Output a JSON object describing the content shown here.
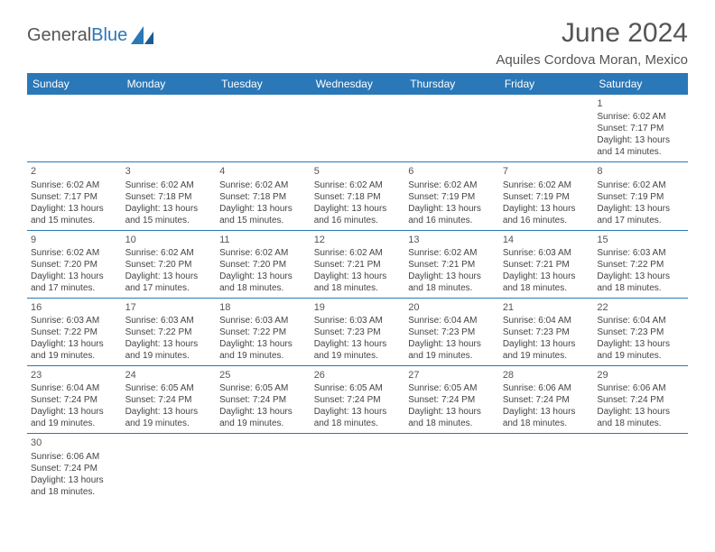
{
  "logo": {
    "text1": "General",
    "text2": "Blue"
  },
  "title": "June 2024",
  "location": "Aquiles Cordova Moran, Mexico",
  "colors": {
    "header_bg": "#2a78b8",
    "header_fg": "#ffffff",
    "border": "#2a78b8",
    "text": "#444"
  },
  "weekdays": [
    "Sunday",
    "Monday",
    "Tuesday",
    "Wednesday",
    "Thursday",
    "Friday",
    "Saturday"
  ],
  "weeks": [
    [
      null,
      null,
      null,
      null,
      null,
      null,
      {
        "n": "1",
        "sr": "Sunrise: 6:02 AM",
        "ss": "Sunset: 7:17 PM",
        "dl1": "Daylight: 13 hours",
        "dl2": "and 14 minutes."
      }
    ],
    [
      {
        "n": "2",
        "sr": "Sunrise: 6:02 AM",
        "ss": "Sunset: 7:17 PM",
        "dl1": "Daylight: 13 hours",
        "dl2": "and 15 minutes."
      },
      {
        "n": "3",
        "sr": "Sunrise: 6:02 AM",
        "ss": "Sunset: 7:18 PM",
        "dl1": "Daylight: 13 hours",
        "dl2": "and 15 minutes."
      },
      {
        "n": "4",
        "sr": "Sunrise: 6:02 AM",
        "ss": "Sunset: 7:18 PM",
        "dl1": "Daylight: 13 hours",
        "dl2": "and 15 minutes."
      },
      {
        "n": "5",
        "sr": "Sunrise: 6:02 AM",
        "ss": "Sunset: 7:18 PM",
        "dl1": "Daylight: 13 hours",
        "dl2": "and 16 minutes."
      },
      {
        "n": "6",
        "sr": "Sunrise: 6:02 AM",
        "ss": "Sunset: 7:19 PM",
        "dl1": "Daylight: 13 hours",
        "dl2": "and 16 minutes."
      },
      {
        "n": "7",
        "sr": "Sunrise: 6:02 AM",
        "ss": "Sunset: 7:19 PM",
        "dl1": "Daylight: 13 hours",
        "dl2": "and 16 minutes."
      },
      {
        "n": "8",
        "sr": "Sunrise: 6:02 AM",
        "ss": "Sunset: 7:19 PM",
        "dl1": "Daylight: 13 hours",
        "dl2": "and 17 minutes."
      }
    ],
    [
      {
        "n": "9",
        "sr": "Sunrise: 6:02 AM",
        "ss": "Sunset: 7:20 PM",
        "dl1": "Daylight: 13 hours",
        "dl2": "and 17 minutes."
      },
      {
        "n": "10",
        "sr": "Sunrise: 6:02 AM",
        "ss": "Sunset: 7:20 PM",
        "dl1": "Daylight: 13 hours",
        "dl2": "and 17 minutes."
      },
      {
        "n": "11",
        "sr": "Sunrise: 6:02 AM",
        "ss": "Sunset: 7:20 PM",
        "dl1": "Daylight: 13 hours",
        "dl2": "and 18 minutes."
      },
      {
        "n": "12",
        "sr": "Sunrise: 6:02 AM",
        "ss": "Sunset: 7:21 PM",
        "dl1": "Daylight: 13 hours",
        "dl2": "and 18 minutes."
      },
      {
        "n": "13",
        "sr": "Sunrise: 6:02 AM",
        "ss": "Sunset: 7:21 PM",
        "dl1": "Daylight: 13 hours",
        "dl2": "and 18 minutes."
      },
      {
        "n": "14",
        "sr": "Sunrise: 6:03 AM",
        "ss": "Sunset: 7:21 PM",
        "dl1": "Daylight: 13 hours",
        "dl2": "and 18 minutes."
      },
      {
        "n": "15",
        "sr": "Sunrise: 6:03 AM",
        "ss": "Sunset: 7:22 PM",
        "dl1": "Daylight: 13 hours",
        "dl2": "and 18 minutes."
      }
    ],
    [
      {
        "n": "16",
        "sr": "Sunrise: 6:03 AM",
        "ss": "Sunset: 7:22 PM",
        "dl1": "Daylight: 13 hours",
        "dl2": "and 19 minutes."
      },
      {
        "n": "17",
        "sr": "Sunrise: 6:03 AM",
        "ss": "Sunset: 7:22 PM",
        "dl1": "Daylight: 13 hours",
        "dl2": "and 19 minutes."
      },
      {
        "n": "18",
        "sr": "Sunrise: 6:03 AM",
        "ss": "Sunset: 7:22 PM",
        "dl1": "Daylight: 13 hours",
        "dl2": "and 19 minutes."
      },
      {
        "n": "19",
        "sr": "Sunrise: 6:03 AM",
        "ss": "Sunset: 7:23 PM",
        "dl1": "Daylight: 13 hours",
        "dl2": "and 19 minutes."
      },
      {
        "n": "20",
        "sr": "Sunrise: 6:04 AM",
        "ss": "Sunset: 7:23 PM",
        "dl1": "Daylight: 13 hours",
        "dl2": "and 19 minutes."
      },
      {
        "n": "21",
        "sr": "Sunrise: 6:04 AM",
        "ss": "Sunset: 7:23 PM",
        "dl1": "Daylight: 13 hours",
        "dl2": "and 19 minutes."
      },
      {
        "n": "22",
        "sr": "Sunrise: 6:04 AM",
        "ss": "Sunset: 7:23 PM",
        "dl1": "Daylight: 13 hours",
        "dl2": "and 19 minutes."
      }
    ],
    [
      {
        "n": "23",
        "sr": "Sunrise: 6:04 AM",
        "ss": "Sunset: 7:24 PM",
        "dl1": "Daylight: 13 hours",
        "dl2": "and 19 minutes."
      },
      {
        "n": "24",
        "sr": "Sunrise: 6:05 AM",
        "ss": "Sunset: 7:24 PM",
        "dl1": "Daylight: 13 hours",
        "dl2": "and 19 minutes."
      },
      {
        "n": "25",
        "sr": "Sunrise: 6:05 AM",
        "ss": "Sunset: 7:24 PM",
        "dl1": "Daylight: 13 hours",
        "dl2": "and 19 minutes."
      },
      {
        "n": "26",
        "sr": "Sunrise: 6:05 AM",
        "ss": "Sunset: 7:24 PM",
        "dl1": "Daylight: 13 hours",
        "dl2": "and 18 minutes."
      },
      {
        "n": "27",
        "sr": "Sunrise: 6:05 AM",
        "ss": "Sunset: 7:24 PM",
        "dl1": "Daylight: 13 hours",
        "dl2": "and 18 minutes."
      },
      {
        "n": "28",
        "sr": "Sunrise: 6:06 AM",
        "ss": "Sunset: 7:24 PM",
        "dl1": "Daylight: 13 hours",
        "dl2": "and 18 minutes."
      },
      {
        "n": "29",
        "sr": "Sunrise: 6:06 AM",
        "ss": "Sunset: 7:24 PM",
        "dl1": "Daylight: 13 hours",
        "dl2": "and 18 minutes."
      }
    ],
    [
      {
        "n": "30",
        "sr": "Sunrise: 6:06 AM",
        "ss": "Sunset: 7:24 PM",
        "dl1": "Daylight: 13 hours",
        "dl2": "and 18 minutes."
      },
      null,
      null,
      null,
      null,
      null,
      null
    ]
  ]
}
